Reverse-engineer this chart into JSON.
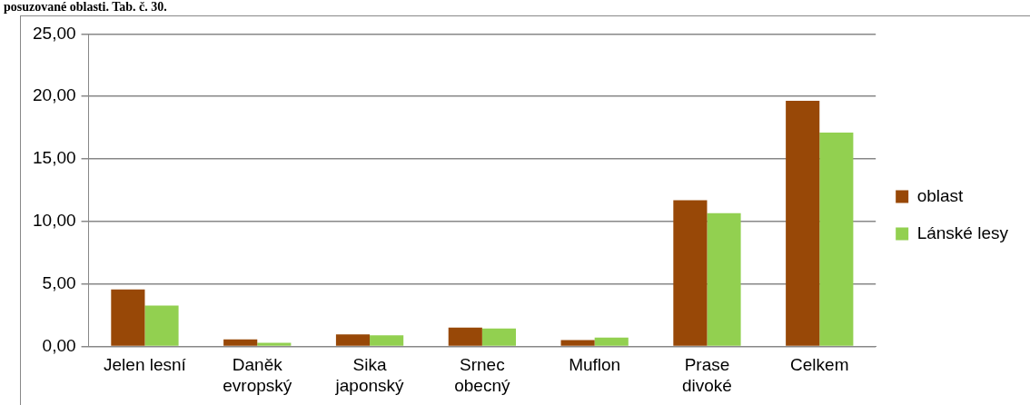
{
  "chart_data": {
    "type": "bar",
    "annotations": [
      "posuzované oblasti. Tab. č. 30."
    ],
    "categories": [
      "Jelen lesní",
      "Daněk\nevropský",
      "Sika\njaponský",
      "Srnec\nobecný",
      "Muflon",
      "Prase\ndivoké",
      "Celkem"
    ],
    "series": [
      {
        "name": "oblast",
        "color": "#984807",
        "values": [
          4.55,
          0.55,
          0.95,
          1.5,
          0.5,
          11.7,
          19.65
        ]
      },
      {
        "name": "Lánské lesy",
        "color": "#92d050",
        "values": [
          3.27,
          0.28,
          0.88,
          1.43,
          0.7,
          10.65,
          17.1
        ]
      }
    ],
    "ylim": [
      0,
      25
    ],
    "yticks": [
      {
        "value": 0,
        "label": "0,00"
      },
      {
        "value": 5,
        "label": "5,00"
      },
      {
        "value": 10,
        "label": "10,00"
      },
      {
        "value": 15,
        "label": "15,00"
      },
      {
        "value": 20,
        "label": "20,00"
      },
      {
        "value": 25,
        "label": "25,00"
      }
    ],
    "grid": "y",
    "legend": "right"
  }
}
